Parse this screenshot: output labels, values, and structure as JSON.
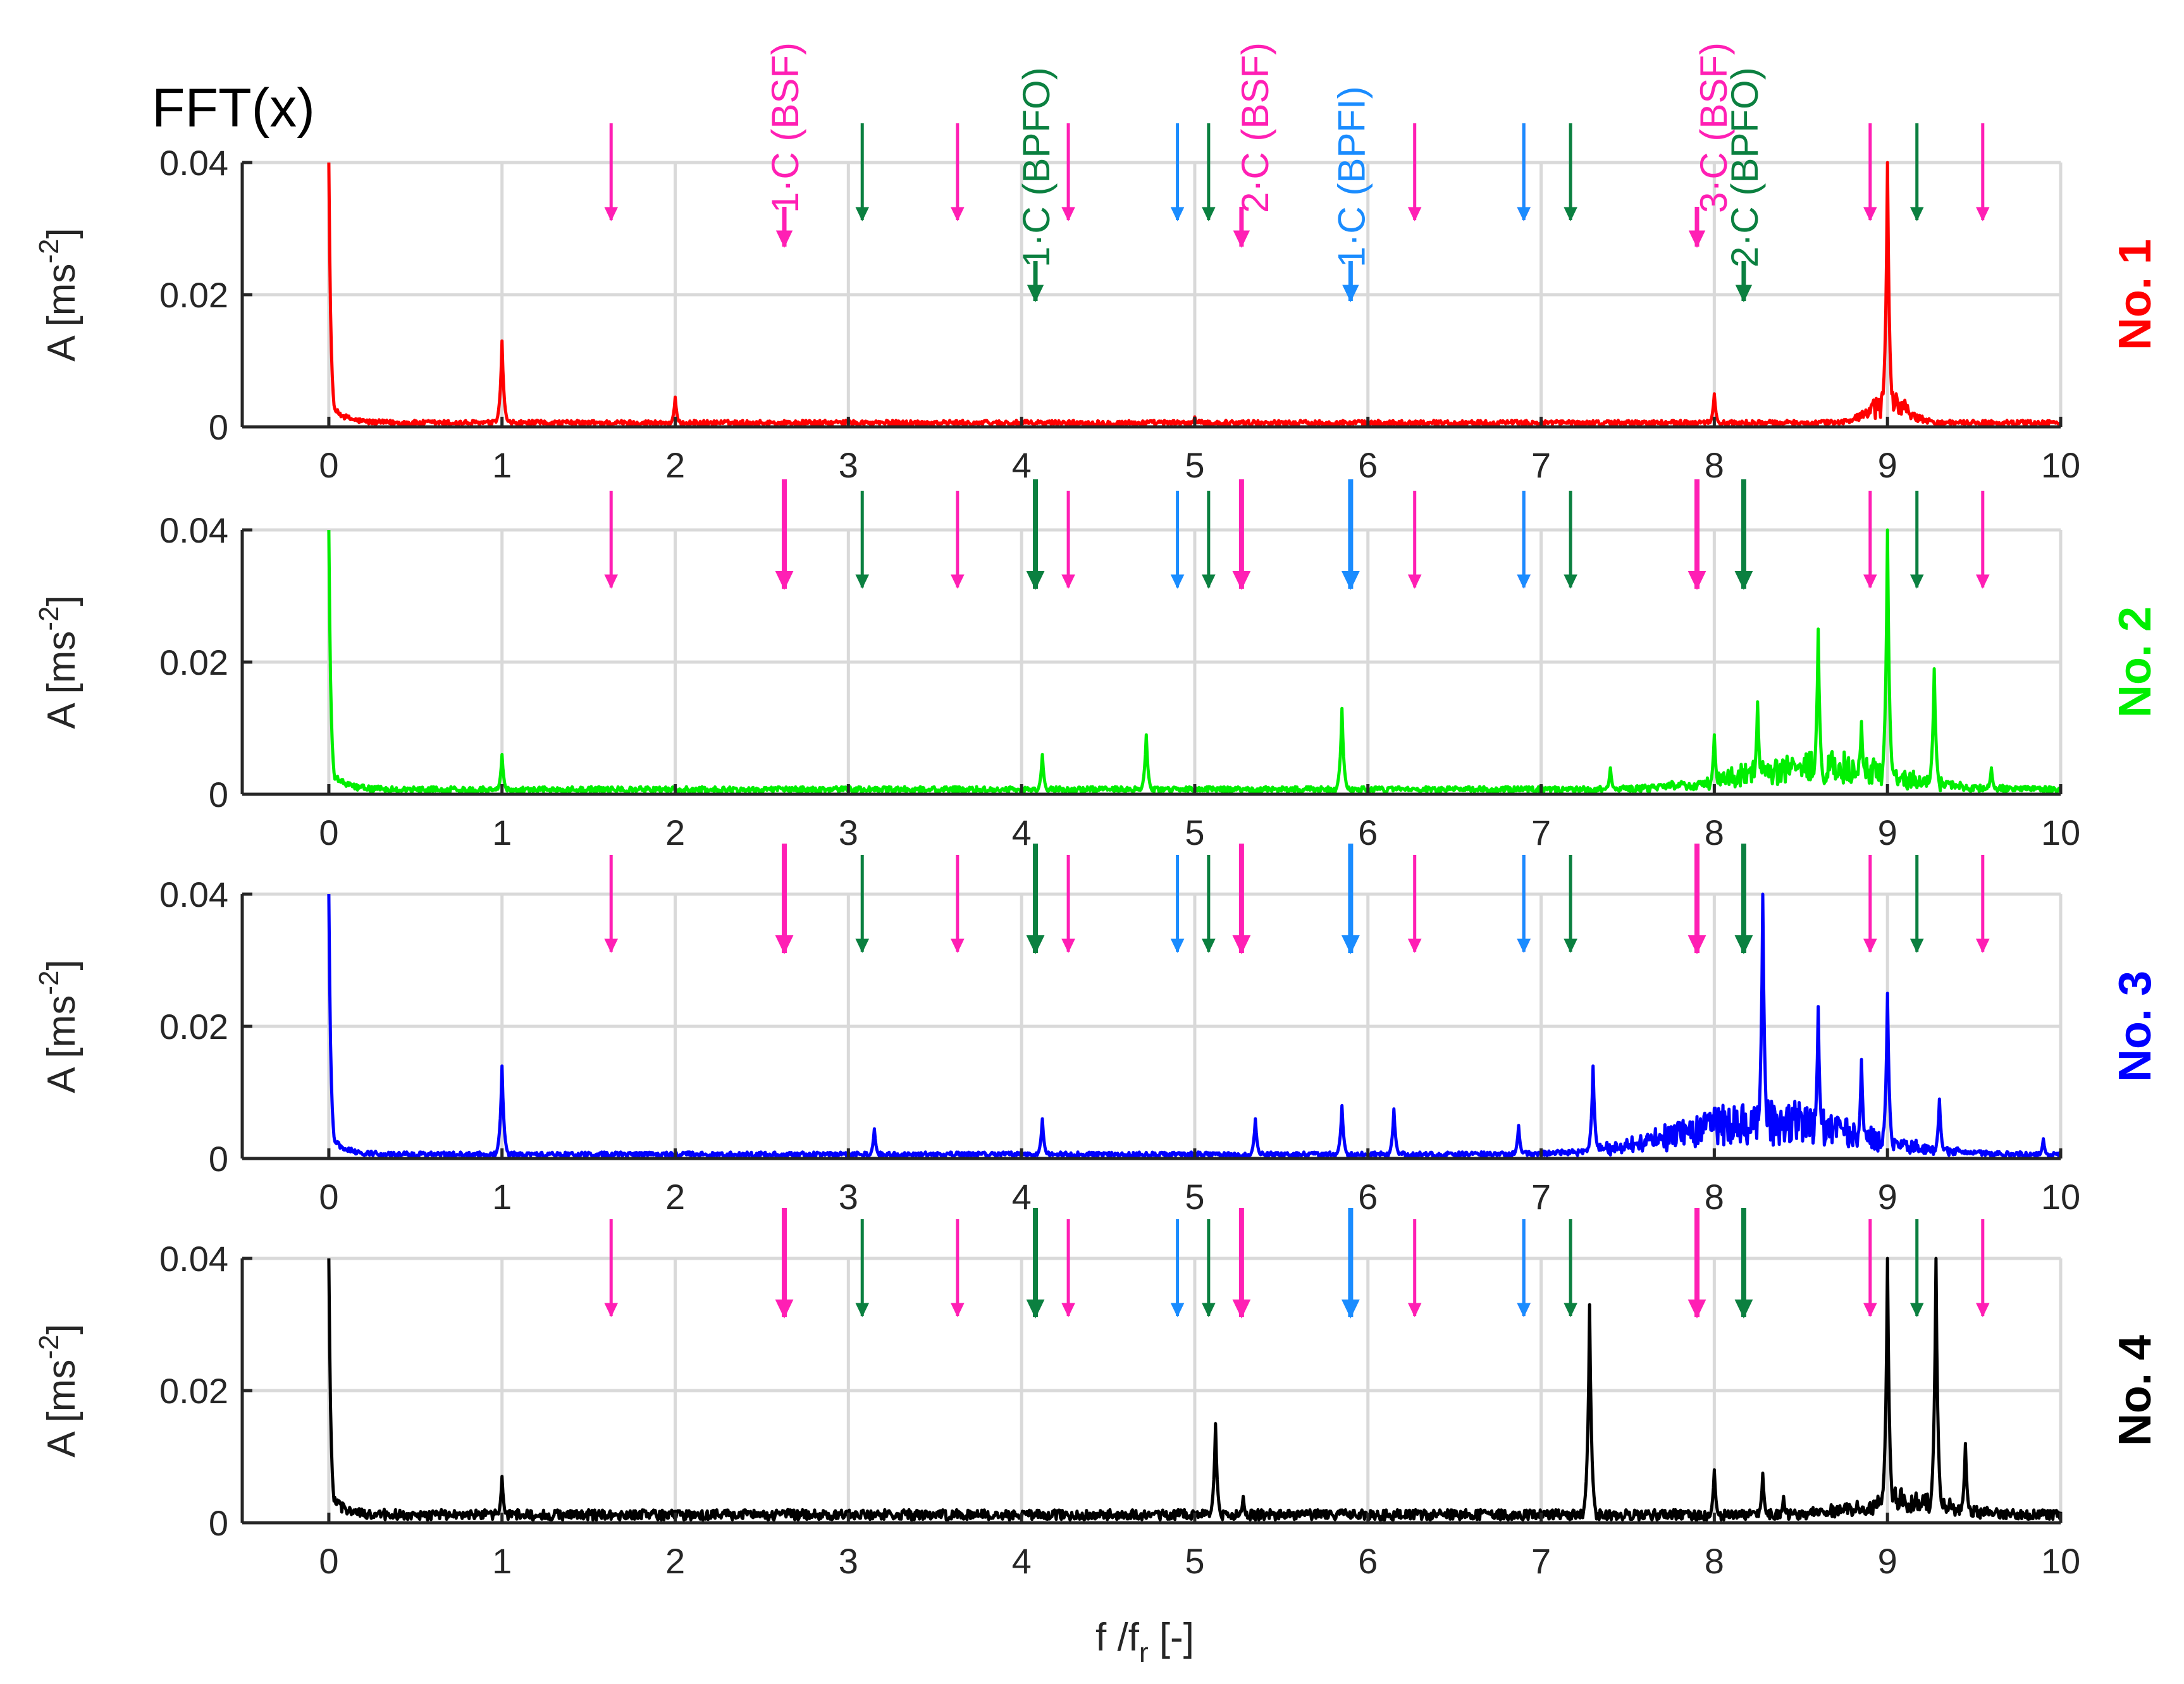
{
  "chart_data": {
    "type": "line",
    "title": "FFT(x)",
    "xlabel": "f /f_r [-]",
    "xlabel_main": "f /f",
    "xlabel_sub": "r",
    "xlabel_tail": " [-]",
    "ylabel": "A [ms^-2]",
    "ylabel_main": "A [ms",
    "ylabel_sup": "-2",
    "ylabel_tail": "]",
    "xlim": [
      -0.5,
      10
    ],
    "ylim": [
      0,
      0.04
    ],
    "xticks": [
      "0",
      "1",
      "2",
      "3",
      "4",
      "5",
      "6",
      "7",
      "8",
      "9",
      "10"
    ],
    "yticks": [
      "0",
      "0.02",
      "0.04"
    ],
    "colors": {
      "bsf": "#ff1fb4",
      "bpfo": "#0b8040",
      "bpfi": "#1a8cff",
      "grid": "#d9d9d9",
      "axis": "#262626"
    },
    "fault_markers": {
      "bsf": [
        1.63,
        2.63,
        3.63,
        4.27,
        5.27,
        6.27,
        6.9,
        7.9,
        8.9,
        9.55
      ],
      "bpfo": [
        3.08,
        4.08,
        5.08,
        7.17,
        8.17,
        9.17
      ],
      "bpfi": [
        4.9,
        5.9,
        6.9
      ]
    },
    "major_markers": [
      2.63,
      4.08,
      5.27,
      5.9,
      7.9,
      8.17
    ],
    "annotations": [
      {
        "text": "1·C (BSF)",
        "x": 2.63,
        "type": "bsf"
      },
      {
        "text": "1·C (BPFO)",
        "x": 4.08,
        "type": "bpfo"
      },
      {
        "text": "2·C (BSF)",
        "x": 5.27,
        "type": "bsf"
      },
      {
        "text": "1·C (BPFI)",
        "x": 5.9,
        "type": "bpfi"
      },
      {
        "text": "3·C (BSF)",
        "x": 7.9,
        "type": "bsf"
      },
      {
        "text": "2·C (BPFO)",
        "x": 8.17,
        "type": "bpfo"
      }
    ],
    "series": [
      {
        "name": "No. 1",
        "color": "#ff0000",
        "baseline": 0.0006,
        "peaks": [
          [
            0,
            0.04
          ],
          [
            1,
            0.013
          ],
          [
            2,
            0.0045
          ],
          [
            3,
            0.0012
          ],
          [
            5,
            0.0015
          ],
          [
            8,
            0.005
          ],
          [
            9,
            0.04
          ]
        ],
        "broad": [
          [
            9,
            0.003,
            0.15
          ]
        ]
      },
      {
        "name": "No. 2",
        "color": "#00ee00",
        "baseline": 0.0007,
        "peaks": [
          [
            0,
            0.04
          ],
          [
            1,
            0.006
          ],
          [
            4.12,
            0.006
          ],
          [
            4.72,
            0.009
          ],
          [
            5.85,
            0.013
          ],
          [
            7.4,
            0.004
          ],
          [
            8.0,
            0.009
          ],
          [
            8.25,
            0.014
          ],
          [
            8.6,
            0.025
          ],
          [
            8.85,
            0.011
          ],
          [
            9,
            0.04
          ],
          [
            9.27,
            0.019
          ],
          [
            9.6,
            0.004
          ]
        ],
        "broad": [
          [
            8.6,
            0.0035,
            0.6
          ]
        ]
      },
      {
        "name": "No. 3",
        "color": "#0000ff",
        "baseline": 0.0006,
        "peaks": [
          [
            0,
            0.04
          ],
          [
            1,
            0.014
          ],
          [
            3.15,
            0.0045
          ],
          [
            4.12,
            0.006
          ],
          [
            5.35,
            0.006
          ],
          [
            5.85,
            0.008
          ],
          [
            6.15,
            0.0075
          ],
          [
            6.87,
            0.005
          ],
          [
            7.3,
            0.014
          ],
          [
            8.28,
            0.04
          ],
          [
            8.6,
            0.023
          ],
          [
            8.85,
            0.015
          ],
          [
            9,
            0.025
          ],
          [
            9.3,
            0.009
          ],
          [
            9.9,
            0.003
          ]
        ],
        "broad": [
          [
            8.3,
            0.005,
            0.7
          ]
        ]
      },
      {
        "name": "No. 4",
        "color": "#000000",
        "baseline": 0.0012,
        "peaks": [
          [
            0,
            0.04
          ],
          [
            1,
            0.007
          ],
          [
            2.65,
            0.002
          ],
          [
            5.12,
            0.015
          ],
          [
            5.28,
            0.004
          ],
          [
            7.28,
            0.033
          ],
          [
            8.0,
            0.008
          ],
          [
            8.28,
            0.0075
          ],
          [
            8.4,
            0.004
          ],
          [
            9,
            0.04
          ],
          [
            9.28,
            0.04
          ],
          [
            9.45,
            0.012
          ]
        ],
        "broad": [
          [
            9.1,
            0.002,
            0.35
          ]
        ]
      }
    ]
  }
}
